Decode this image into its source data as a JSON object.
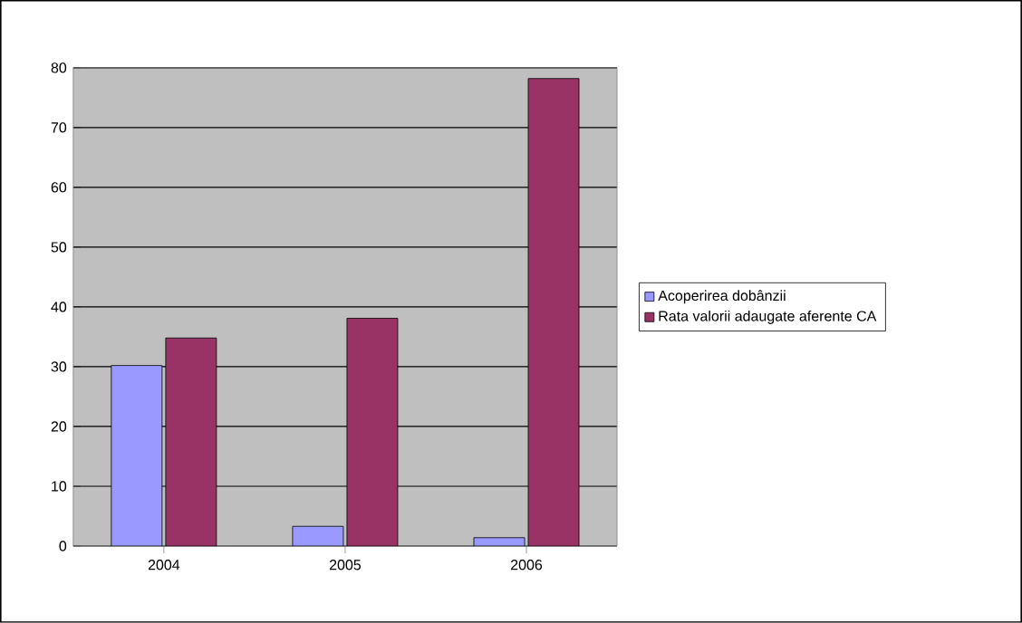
{
  "chart_data": {
    "type": "bar",
    "categories": [
      "2004",
      "2005",
      "2006"
    ],
    "series": [
      {
        "name": "Acoperirea dobânzii",
        "color": "#9999ff",
        "values": [
          30.2,
          3.3,
          1.4
        ]
      },
      {
        "name": "Rata valorii adaugate aferente CA",
        "color": "#993366",
        "values": [
          34.8,
          38.1,
          78.2
        ]
      }
    ],
    "ylim": [
      0,
      80
    ],
    "yticks": [
      0,
      10,
      20,
      30,
      40,
      50,
      60,
      70,
      80
    ],
    "grid": "y",
    "legend": "right"
  }
}
